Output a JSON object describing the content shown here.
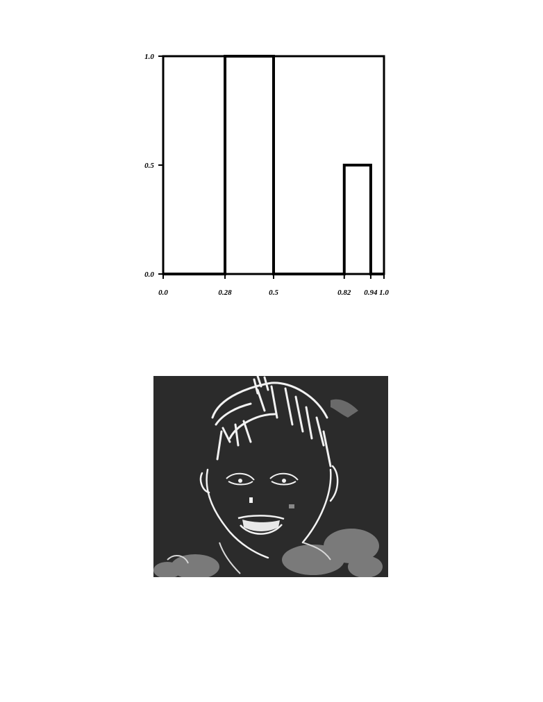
{
  "chart_data": {
    "type": "line",
    "title": "",
    "xlabel": "",
    "ylabel": "",
    "xlim": [
      0.0,
      1.0
    ],
    "ylim": [
      0.0,
      1.0
    ],
    "grid": false,
    "x_ticks": [
      "0.0",
      "0.28",
      "0.5",
      "0.82",
      "0.94",
      "1.0"
    ],
    "y_ticks": [
      "0.0",
      "0.5",
      "1.0"
    ],
    "series": [
      {
        "x": [
          0.0,
          0.28,
          0.28,
          0.5,
          0.5,
          0.82,
          0.82,
          0.94,
          0.94,
          1.0
        ],
        "y": [
          0.0,
          0.0,
          1.0,
          1.0,
          0.0,
          0.0,
          0.5,
          0.5,
          0.0,
          0.0
        ]
      }
    ]
  },
  "colors": {
    "line": "#000000",
    "photo_bg": "#2a2a2a",
    "edge": "#f2f2f2"
  }
}
